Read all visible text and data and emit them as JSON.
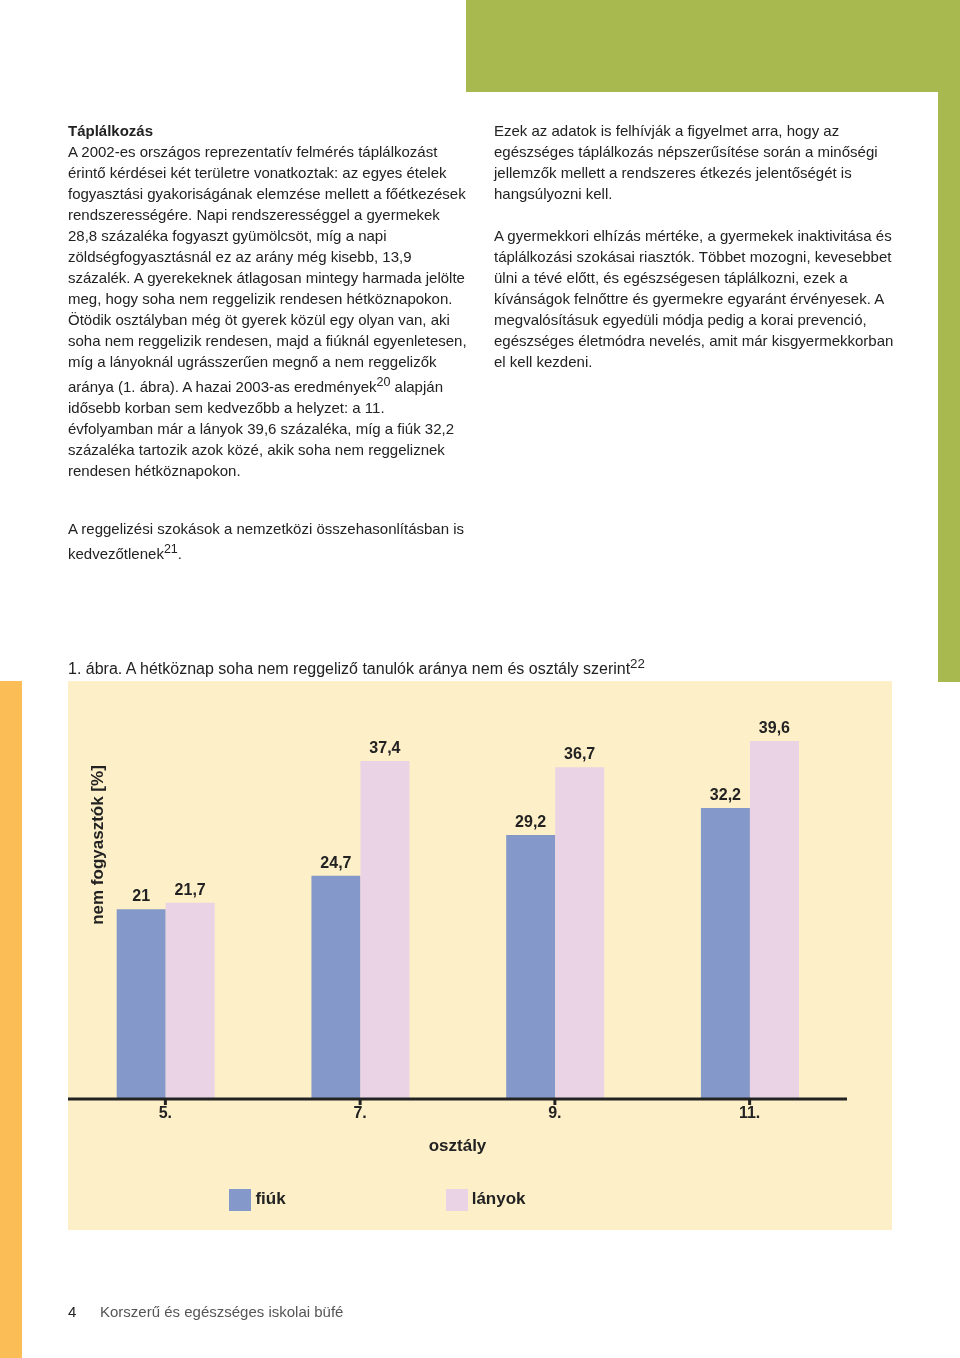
{
  "chart_data": {
    "type": "bar",
    "title": "1. ábra. A hétköznap soha nem reggeliző tanulók aránya nem és osztály szerint$^{22}$",
    "xlabel": "osztály",
    "ylabel": "nem fogyasztók [%]",
    "categories": [
      "5.",
      "7.",
      "9.",
      "11."
    ],
    "series": [
      {
        "name": "fiúk",
        "color": "#8498ca",
        "values": [
          21,
          24.7,
          29.2,
          32.2
        ],
        "value_labels": [
          "21",
          "24,7",
          "29,2",
          "32,2"
        ]
      },
      {
        "name": "lányok",
        "color": "#e9d3e5",
        "values": [
          21.7,
          37.4,
          36.7,
          39.6
        ],
        "value_labels": [
          "21,7",
          "37,4",
          "36,7",
          "39,6"
        ]
      }
    ],
    "legend": "bottom",
    "annotations": [
      "Táplálkozás",
      "A 2002-es országos reprezentatív felmérés táplálkozást érintő kérdései két területre vonatkoztak: az egyes ételek fogyasztási gyakoriságának elemzése mellett a főétkezések rendszerességére. Napi rendszerességgel a gyermekek 28,8 százaléka fogyaszt gyümölcsöt, míg a napi zöldségfogyasztásnál ez az arány még kisebb, 13,9 százalék. A gyerekeknek átlagosan mintegy harmada jelölte meg, hogy soha nem reggelizik rendesen hétköznapokon. Ötödik osztályban még öt gyerek közül egy olyan van, aki soha nem reggelizik rendesen, majd a fiúknál egyenletesen, míg a lányoknál ugrásszerűen megnő a nem reggelizők aránya (1. ábra). A hazai 2003-as eredmények$^{20}$ alapján idősebb korban sem kedvezőbb a helyzet: a 11. évfolyamban már a lányok 39,6 százaléka, míg a fiúk 32,2 százaléka tartozik azok közé, akik soha nem reggeliznek rendesen hétköznapokon.",
      "A reggelizési szokások a nemzetközi összehasonlításban is kedvezőtlenek$^{21}$.",
      "Ezek az adatok is felhívják a figyelmet arra, hogy az egészséges táplálkozás népszerűsítése során a minőségi jellemzők mellett a rendszeres étkezés jelentőségét is hangsúlyozni kell.",
      "A gyermekkori elhízás mértéke, a gyermekek inaktivitása és táplálkozási szokásai riasztók. Többet mozogni, kevesebbet ülni a tévé előtt, és egészségesen táplálkozni, ezek a kívánságok felnőttre és gyermekre egyaránt érvényesek. A megvalósításuk egyedüli módja pedig a korai prevenció, egészséges életmódra nevelés, amit már kisgyermekkorban el kell kezdeni.",
      "4",
      "Korszerű és egészséges iskolai büfé"
    ]
  }
}
